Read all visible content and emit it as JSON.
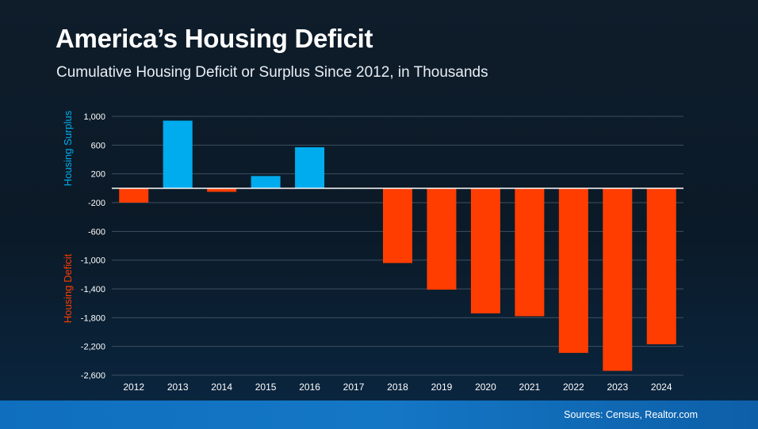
{
  "title": "America’s Housing Deficit",
  "subtitle": "Cumulative Housing Deficit or Surplus Since 2012, in Thousands",
  "sources": "Sources: Census, Realtor.com",
  "colors": {
    "surplus": "#00acee",
    "deficit": "#ff3d00",
    "grid": "#3c4f61",
    "zero_line": "#ffffff",
    "tick_text": "#ffffff"
  },
  "chart_data": {
    "type": "bar",
    "title": "America’s Housing Deficit",
    "subtitle": "Cumulative Housing Deficit or Surplus Since 2012, in Thousands",
    "categories": [
      "2012",
      "2013",
      "2014",
      "2015",
      "2016",
      "2017",
      "2018",
      "2019",
      "2020",
      "2021",
      "2022",
      "2023",
      "2024"
    ],
    "values": [
      -200,
      940,
      -50,
      170,
      570,
      0,
      -1040,
      -1410,
      -1740,
      -1780,
      -2290,
      -2540,
      -2170
    ],
    "ylim": [
      -2600,
      1000
    ],
    "yticks": [
      1000,
      600,
      200,
      -200,
      -600,
      -1000,
      -1400,
      -1800,
      -2200,
      -2600
    ],
    "ytick_labels": [
      "1,000",
      "600",
      "200",
      "-200",
      "-600",
      "-1,000",
      "-1,400",
      "-1,800",
      "-2,200",
      "-2,600"
    ],
    "surplus_label": "Housing Surplus",
    "deficit_label": "Housing Deficit",
    "xlabel": "",
    "ylabel": "",
    "grid": true,
    "legend": "none"
  }
}
